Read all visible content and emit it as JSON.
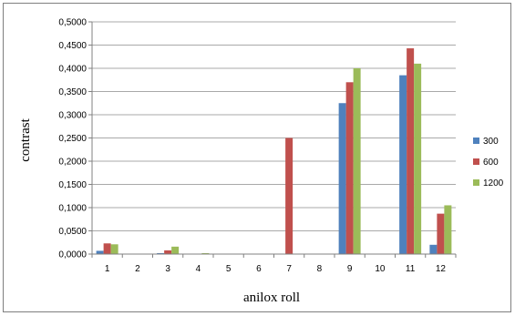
{
  "chart_data": {
    "type": "bar",
    "title": "",
    "xlabel": "anilox roll",
    "ylabel": "contrast",
    "categories": [
      "1",
      "2",
      "3",
      "4",
      "5",
      "6",
      "7",
      "8",
      "9",
      "10",
      "11",
      "12"
    ],
    "series": [
      {
        "name": "300",
        "color": "#4f81bd",
        "values": [
          0.007,
          0,
          0.002,
          0,
          0,
          0,
          0,
          0,
          0.325,
          0,
          0.385,
          0.02
        ]
      },
      {
        "name": "600",
        "color": "#c0504d",
        "values": [
          0.023,
          0,
          0.008,
          0,
          0,
          0,
          0.25,
          0,
          0.37,
          0,
          0.443,
          0.087
        ]
      },
      {
        "name": "1200",
        "color": "#9bbb59",
        "values": [
          0.021,
          0,
          0.016,
          0.002,
          0,
          0,
          0,
          0,
          0.4,
          0,
          0.41,
          0.105
        ]
      }
    ],
    "ylim": [
      0,
      0.5
    ],
    "yticks": [
      0,
      0.05,
      0.1,
      0.15,
      0.2,
      0.25,
      0.3,
      0.35,
      0.4,
      0.45,
      0.5
    ],
    "ytick_labels": [
      "0,0000",
      "0,0500",
      "0,1000",
      "0,1500",
      "0,2000",
      "0,2500",
      "0,3000",
      "0,3500",
      "0,4000",
      "0,4500",
      "0,5000"
    ],
    "grid": true,
    "legend_position": "right"
  }
}
